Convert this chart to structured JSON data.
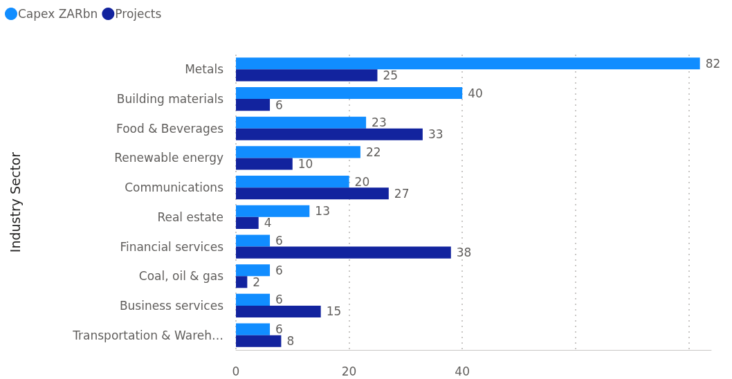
{
  "chart_data": {
    "type": "bar",
    "orientation": "horizontal",
    "ylabel": "Industry Sector",
    "categories": [
      "Metals",
      "Building materials",
      "Food & Beverages",
      "Renewable energy",
      "Communications",
      "Real estate",
      "Financial services",
      "Coal, oil & gas",
      "Business services",
      "Transportation & Wareh…"
    ],
    "series": [
      {
        "name": "Capex ZARbn",
        "color": "#118dff",
        "values": [
          82,
          40,
          23,
          22,
          20,
          13,
          6,
          6,
          6,
          6
        ]
      },
      {
        "name": "Projects",
        "color": "#12239e",
        "values": [
          25,
          6,
          33,
          10,
          27,
          4,
          38,
          2,
          15,
          8
        ]
      }
    ],
    "xlim": [
      0,
      84
    ],
    "xticks": [
      0,
      20,
      40,
      {
        "value": 60,
        "label": null
      },
      {
        "value": 80,
        "label": null
      }
    ],
    "grid": "x",
    "legend": "top left",
    "data_labels": true
  }
}
